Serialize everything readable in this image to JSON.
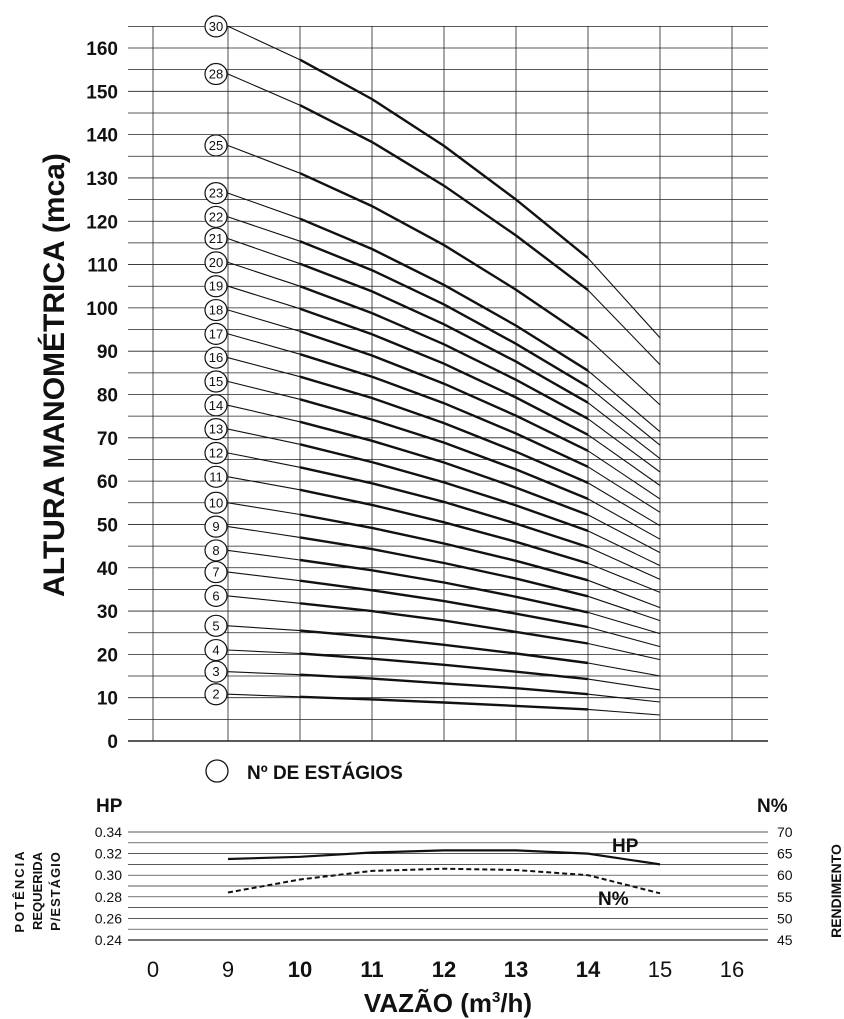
{
  "chart_data": [
    {
      "type": "line",
      "title": "",
      "xlabel": "",
      "ylabel": "ALTURA MANOMÉTRICA (mca)",
      "ylim": [
        0,
        160
      ],
      "yticks": [
        0,
        10,
        20,
        30,
        40,
        50,
        60,
        70,
        80,
        90,
        100,
        110,
        120,
        130,
        140,
        150,
        160
      ],
      "xlim": [
        0,
        16
      ],
      "legend_note": "Nº DE ESTÁGIOS",
      "grid": true,
      "x": [
        9,
        10,
        11,
        12,
        13,
        14,
        15
      ],
      "series": [
        {
          "name": "2",
          "values": [
            10.8,
            10.2,
            9.6,
            8.9,
            8.1,
            7.3,
            6.0
          ]
        },
        {
          "name": "3",
          "values": [
            16.0,
            15.3,
            14.4,
            13.3,
            12.2,
            10.8,
            9.0
          ]
        },
        {
          "name": "4",
          "values": [
            21.0,
            20.2,
            19.0,
            17.6,
            16.0,
            14.3,
            11.8
          ]
        },
        {
          "name": "5",
          "values": [
            26.6,
            25.5,
            24.0,
            22.2,
            20.2,
            18.0,
            15.0
          ]
        },
        {
          "name": "6",
          "values": [
            33.5,
            31.8,
            30.0,
            27.8,
            25.2,
            22.5,
            18.8
          ]
        },
        {
          "name": "7",
          "values": [
            39.0,
            37.0,
            34.8,
            32.3,
            29.4,
            26.3,
            21.8
          ]
        },
        {
          "name": "8",
          "values": [
            44.0,
            41.8,
            39.4,
            36.6,
            33.3,
            29.7,
            24.8
          ]
        },
        {
          "name": "9",
          "values": [
            49.5,
            47.0,
            44.3,
            41.1,
            37.5,
            33.4,
            27.8
          ]
        },
        {
          "name": "10",
          "values": [
            55.0,
            52.3,
            49.2,
            45.6,
            41.6,
            37.1,
            30.8
          ]
        },
        {
          "name": "11",
          "values": [
            61.0,
            58.0,
            54.5,
            50.5,
            46.0,
            41.0,
            34.3
          ]
        },
        {
          "name": "12",
          "values": [
            66.5,
            63.2,
            59.5,
            55.2,
            50.2,
            44.8,
            37.3
          ]
        },
        {
          "name": "13",
          "values": [
            72.0,
            68.5,
            64.4,
            59.7,
            54.4,
            48.5,
            40.5
          ]
        },
        {
          "name": "14",
          "values": [
            77.5,
            73.7,
            69.3,
            64.3,
            58.5,
            52.2,
            43.5
          ]
        },
        {
          "name": "15",
          "values": [
            83.0,
            78.9,
            74.2,
            68.9,
            62.7,
            55.9,
            46.6
          ]
        },
        {
          "name": "16",
          "values": [
            88.5,
            84.1,
            79.2,
            73.4,
            66.8,
            59.6,
            49.7
          ]
        },
        {
          "name": "17",
          "values": [
            94.0,
            89.3,
            84.1,
            78.0,
            71.0,
            63.3,
            52.8
          ]
        },
        {
          "name": "18",
          "values": [
            99.5,
            94.6,
            89.0,
            82.5,
            75.1,
            67.0,
            55.9
          ]
        },
        {
          "name": "19",
          "values": [
            105.0,
            99.8,
            93.9,
            87.1,
            79.3,
            70.7,
            59.0
          ]
        },
        {
          "name": "20",
          "values": [
            110.5,
            105.0,
            98.8,
            91.6,
            83.4,
            74.4,
            62.1
          ]
        },
        {
          "name": "21",
          "values": [
            116.0,
            110.2,
            103.8,
            96.2,
            87.6,
            78.1,
            65.2
          ]
        },
        {
          "name": "22",
          "values": [
            121.0,
            115.4,
            108.7,
            100.8,
            91.7,
            81.8,
            68.3
          ]
        },
        {
          "name": "23",
          "values": [
            126.5,
            120.6,
            113.6,
            105.3,
            95.9,
            85.5,
            71.4
          ]
        },
        {
          "name": "25",
          "values": [
            137.5,
            131.1,
            123.5,
            114.5,
            104.2,
            92.9,
            77.6
          ]
        },
        {
          "name": "28",
          "values": [
            154.0,
            146.8,
            138.3,
            128.2,
            116.7,
            104.1,
            86.9
          ]
        },
        {
          "name": "30",
          "values": [
            165.0,
            157.3,
            148.2,
            137.4,
            125.0,
            111.5,
            93.1
          ]
        }
      ]
    },
    {
      "type": "line",
      "xlabel": "VAZÃO (m³/h)",
      "xlabel_main": "VAZÃO (m",
      "xlabel_sup": "3",
      "xlabel_tail": "/h)",
      "xticks": [
        "0",
        "9",
        "10",
        "11",
        "12",
        "13",
        "14",
        "15",
        "16"
      ],
      "xticks_bold": [
        "10",
        "11",
        "12",
        "13",
        "14"
      ],
      "left_axis": {
        "title_lines": [
          "POTÊNCIA",
          "REQUERIDA",
          "P/ESTÁGIO"
        ],
        "unit": "HP",
        "ticks": [
          "0.24",
          "0.26",
          "0.28",
          "0.30",
          "0.32",
          "0.34"
        ],
        "ylim": [
          0.24,
          0.34
        ]
      },
      "right_axis": {
        "title": "RENDIMENTO",
        "unit": "N%",
        "ticks": [
          "45",
          "50",
          "55",
          "60",
          "65",
          "70"
        ],
        "ylim": [
          45,
          70
        ]
      },
      "x": [
        9,
        10,
        11,
        12,
        13,
        14,
        15
      ],
      "series": [
        {
          "name": "HP",
          "axis": "left",
          "values": [
            0.315,
            0.317,
            0.321,
            0.323,
            0.323,
            0.32,
            0.31
          ]
        },
        {
          "name": "N%",
          "axis": "right",
          "values": [
            56.0,
            59.0,
            61.0,
            61.5,
            61.2,
            60.0,
            55.8
          ]
        }
      ]
    }
  ]
}
